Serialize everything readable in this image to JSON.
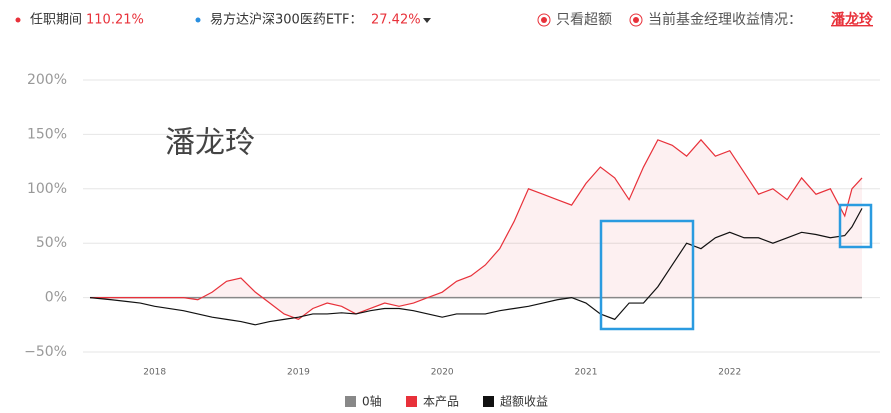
{
  "header": {
    "manager_label": "任职期间",
    "manager_return": "110.21%",
    "benchmark_label": "易方达沪深300医药ETF：",
    "benchmark_return": "27.42%",
    "excess_only": "只看超额",
    "current_label": "当前基金经理收益情况：",
    "current_manager": "潘龙玲"
  },
  "chart_data": {
    "type": "line",
    "annotation": "潘龙玲",
    "x": [
      2017.55,
      2017.7,
      2017.9,
      2018.0,
      2018.2,
      2018.3,
      2018.4,
      2018.5,
      2018.6,
      2018.7,
      2018.8,
      2018.9,
      2019.0,
      2019.1,
      2019.2,
      2019.3,
      2019.4,
      2019.5,
      2019.6,
      2019.7,
      2019.8,
      2019.9,
      2020.0,
      2020.1,
      2020.2,
      2020.3,
      2020.4,
      2020.5,
      2020.6,
      2020.7,
      2020.8,
      2020.9,
      2021.0,
      2021.1,
      2021.2,
      2021.3,
      2021.4,
      2021.5,
      2021.6,
      2021.7,
      2021.8,
      2021.9,
      2022.0,
      2022.1,
      2022.2,
      2022.3,
      2022.4,
      2022.5,
      2022.6,
      2022.7,
      2022.8,
      2022.85,
      2022.92
    ],
    "baseline": {
      "name": "0轴",
      "color": "#888888"
    },
    "series": [
      {
        "name": "本产品",
        "color": "#e8313a",
        "values": [
          0,
          0,
          0,
          0,
          0,
          -2,
          5,
          15,
          18,
          5,
          -5,
          -15,
          -20,
          -10,
          -5,
          -8,
          -15,
          -10,
          -5,
          -8,
          -5,
          0,
          5,
          15,
          20,
          30,
          45,
          70,
          100,
          95,
          90,
          85,
          105,
          120,
          110,
          90,
          120,
          145,
          140,
          130,
          145,
          130,
          135,
          115,
          95,
          100,
          90,
          110,
          95,
          100,
          75,
          100,
          110
        ]
      },
      {
        "name": "超额收益",
        "color": "#111111",
        "values": [
          0,
          -2,
          -5,
          -8,
          -12,
          -15,
          -18,
          -20,
          -22,
          -25,
          -22,
          -20,
          -18,
          -15,
          -15,
          -14,
          -15,
          -12,
          -10,
          -10,
          -12,
          -15,
          -18,
          -15,
          -15,
          -15,
          -12,
          -10,
          -8,
          -5,
          -2,
          0,
          -5,
          -15,
          -20,
          -5,
          -5,
          10,
          30,
          50,
          45,
          55,
          60,
          55,
          55,
          50,
          55,
          60,
          58,
          55,
          57,
          65,
          82
        ]
      }
    ],
    "xlim": [
      2017.55,
      2022.92
    ],
    "xticks": [
      2018,
      2019,
      2020,
      2021,
      2022
    ],
    "ylim": [
      -50,
      200
    ],
    "yticks": [
      {
        "value": -50,
        "label": "−50%"
      },
      {
        "value": 0,
        "label": "0%"
      },
      {
        "value": 50,
        "label": "50%"
      },
      {
        "value": 100,
        "label": "100%"
      },
      {
        "value": 150,
        "label": "150%"
      },
      {
        "value": 200,
        "label": "200%"
      }
    ],
    "grid": true
  }
}
